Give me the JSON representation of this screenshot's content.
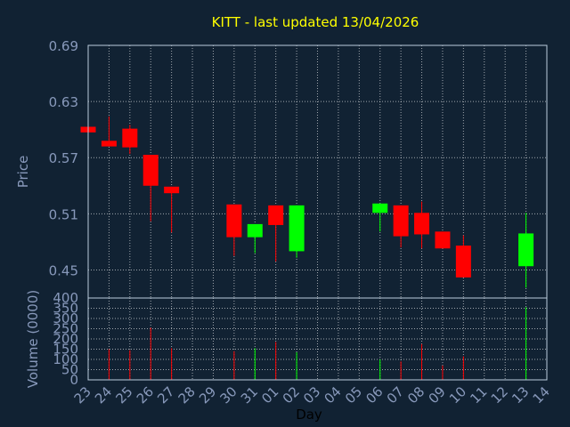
{
  "chart_data": {
    "type": "candlestick",
    "title": "KITT - last updated 13/04/2026",
    "xlabel": "Day",
    "colors": {
      "background": "#112233",
      "frame": "#bbccdd",
      "text": "#ffff00",
      "axis_text": "#8899bb",
      "grid": "#ffffff",
      "up": "#00ff00",
      "down": "#ff0000"
    },
    "price": {
      "ylabel": "Price",
      "ylim": [
        0.42,
        0.69
      ],
      "ticks": [
        0.69,
        0.63,
        0.57,
        0.51,
        0.45
      ],
      "grid": true
    },
    "volume": {
      "ylabel": "Volume (0000)",
      "ylim": [
        0,
        400
      ],
      "ticks": [
        0,
        50,
        100,
        150,
        200,
        250,
        300,
        350,
        400
      ],
      "grid": true
    },
    "days": [
      "23",
      "24",
      "25",
      "26",
      "27",
      "28",
      "29",
      "30",
      "31",
      "01",
      "02",
      "03",
      "04",
      "05",
      "06",
      "07",
      "08",
      "09",
      "10",
      "11",
      "12",
      "13",
      "14"
    ],
    "candles": [
      {
        "day": "23",
        "open": 0.603,
        "close": 0.597,
        "high": 0.603,
        "low": 0.597,
        "volume": 0
      },
      {
        "day": "24",
        "open": 0.588,
        "close": 0.582,
        "high": 0.614,
        "low": 0.582,
        "volume": 150
      },
      {
        "day": "25",
        "open": 0.601,
        "close": 0.581,
        "high": 0.605,
        "low": 0.574,
        "volume": 145
      },
      {
        "day": "26",
        "open": 0.573,
        "close": 0.54,
        "high": 0.573,
        "low": 0.502,
        "volume": 255
      },
      {
        "day": "27",
        "open": 0.539,
        "close": 0.532,
        "high": 0.539,
        "low": 0.49,
        "volume": 155
      },
      {
        "day": "30",
        "open": 0.52,
        "close": 0.485,
        "high": 0.52,
        "low": 0.465,
        "volume": 140
      },
      {
        "day": "31",
        "open": 0.485,
        "close": 0.499,
        "high": 0.499,
        "low": 0.468,
        "volume": 155
      },
      {
        "day": "01",
        "open": 0.519,
        "close": 0.498,
        "high": 0.519,
        "low": 0.459,
        "volume": 185
      },
      {
        "day": "02",
        "open": 0.47,
        "close": 0.519,
        "high": 0.519,
        "low": 0.463,
        "volume": 135
      },
      {
        "day": "06",
        "open": 0.511,
        "close": 0.521,
        "high": 0.521,
        "low": 0.491,
        "volume": 100
      },
      {
        "day": "07",
        "open": 0.519,
        "close": 0.486,
        "high": 0.519,
        "low": 0.474,
        "volume": 90
      },
      {
        "day": "08",
        "open": 0.511,
        "close": 0.488,
        "high": 0.523,
        "low": 0.473,
        "volume": 175
      },
      {
        "day": "09",
        "open": 0.491,
        "close": 0.473,
        "high": 0.491,
        "low": 0.473,
        "volume": 70
      },
      {
        "day": "10",
        "open": 0.476,
        "close": 0.442,
        "high": 0.487,
        "low": 0.442,
        "volume": 115
      },
      {
        "day": "13",
        "open": 0.454,
        "close": 0.489,
        "high": 0.511,
        "low": 0.431,
        "volume": 355
      }
    ]
  }
}
